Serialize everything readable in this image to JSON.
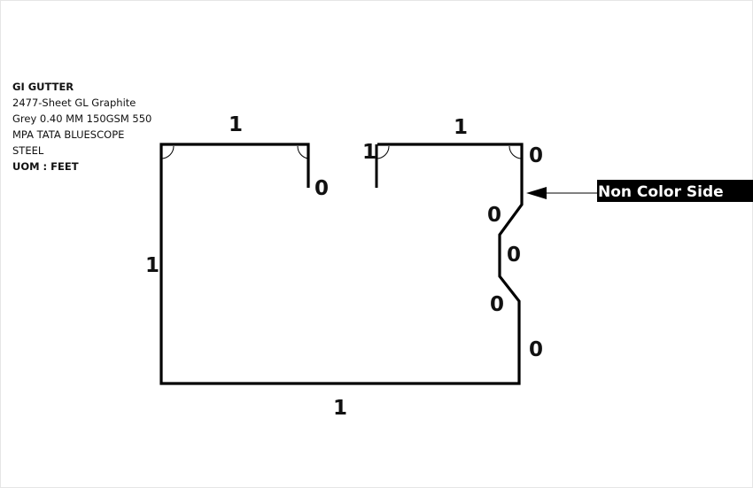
{
  "product": {
    "title": "GI GUTTER",
    "description_lines": [
      "2477-Sheet GL Graphite",
      "Grey 0.40 MM 150GSM 550",
      "MPA TATA BLUESCOPE",
      "STEEL"
    ],
    "uom": "UOM : FEET"
  },
  "dimensions": {
    "top_left": "1",
    "left_drop": "0",
    "top_right_lip": "1",
    "top_right": "1",
    "right_top": "0",
    "bend_upper": "0",
    "bend_middle": "0",
    "bend_lower": "0",
    "right_bottom": "0",
    "left_side": "1",
    "bottom": "1"
  },
  "callout": {
    "label": "Non Color Side"
  },
  "colors": {
    "line": "#000000",
    "callout_bg": "#000000",
    "callout_text": "#ffffff"
  }
}
